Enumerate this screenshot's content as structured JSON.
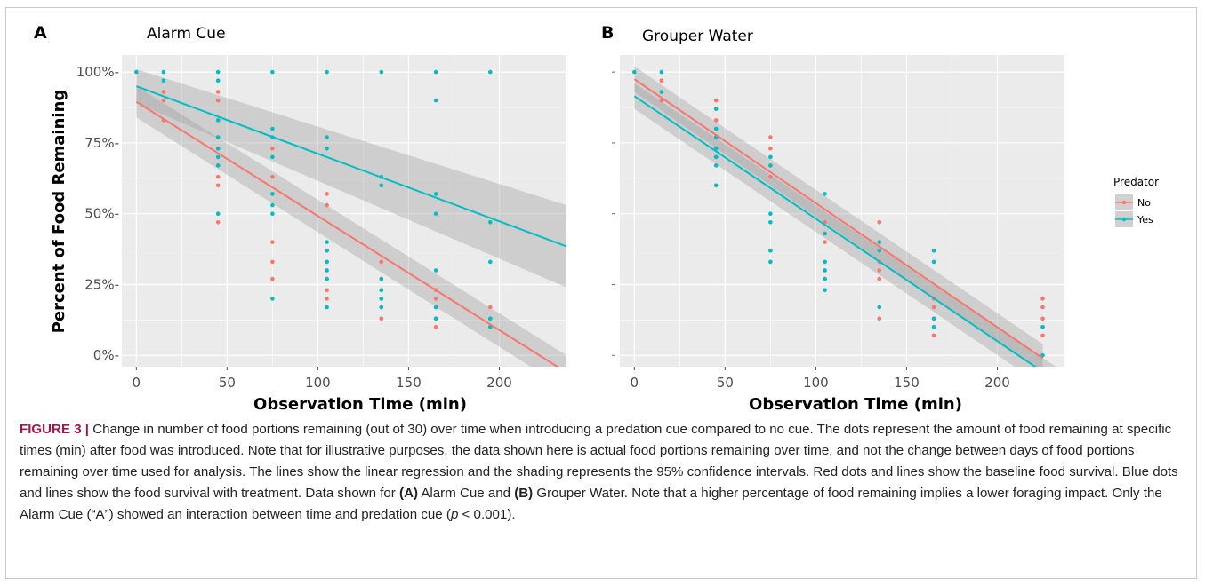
{
  "chart_data": [
    {
      "panel": "A",
      "title": "Alarm Cue",
      "type": "scatter",
      "xlabel": "Observation Time (min)",
      "ylabel": "Percent of Food Remaining",
      "xlim": [
        -8,
        237
      ],
      "ylim": [
        -4,
        106
      ],
      "xticks": [
        0,
        50,
        100,
        150,
        200
      ],
      "xtick_labels": [
        "0",
        "50",
        "100",
        "150",
        "200"
      ],
      "yticks": [
        0,
        25,
        50,
        75,
        100
      ],
      "ytick_labels": [
        "0%-",
        "25%-",
        "50%-",
        "75%-",
        "100%-"
      ],
      "series": [
        {
          "name": "No",
          "color": "#F8766D",
          "points": [
            [
              15,
              93
            ],
            [
              15,
              90
            ],
            [
              15,
              83
            ],
            [
              45,
              93
            ],
            [
              45,
              90
            ],
            [
              45,
              83
            ],
            [
              45,
              77
            ],
            [
              45,
              73
            ],
            [
              45,
              67
            ],
            [
              45,
              63
            ],
            [
              45,
              60
            ],
            [
              45,
              50
            ],
            [
              45,
              47
            ],
            [
              75,
              73
            ],
            [
              75,
              63
            ],
            [
              75,
              57
            ],
            [
              75,
              40
            ],
            [
              75,
              33
            ],
            [
              75,
              27
            ],
            [
              105,
              57
            ],
            [
              105,
              53
            ],
            [
              105,
              37
            ],
            [
              105,
              33
            ],
            [
              105,
              30
            ],
            [
              105,
              27
            ],
            [
              105,
              23
            ],
            [
              105,
              20
            ],
            [
              135,
              33
            ],
            [
              135,
              27
            ],
            [
              135,
              23
            ],
            [
              135,
              20
            ],
            [
              135,
              17
            ],
            [
              135,
              13
            ],
            [
              165,
              23
            ],
            [
              165,
              20
            ],
            [
              165,
              17
            ],
            [
              165,
              13
            ],
            [
              165,
              10
            ],
            [
              195,
              17
            ],
            [
              195,
              13
            ],
            [
              195,
              10
            ]
          ],
          "fit": {
            "x0": 0,
            "y0": 89.5,
            "x1": 237,
            "y1": -6
          },
          "ci": {
            "upper": [
              [
                0,
                95
              ],
              [
                237,
                0
              ]
            ],
            "lower": [
              [
                0,
                84
              ],
              [
                237,
                -12
              ]
            ]
          }
        },
        {
          "name": "Yes",
          "color": "#00BFC4",
          "points": [
            [
              0,
              100
            ],
            [
              15,
              100
            ],
            [
              15,
              97
            ],
            [
              45,
              100
            ],
            [
              45,
              97
            ],
            [
              45,
              83
            ],
            [
              45,
              77
            ],
            [
              45,
              73
            ],
            [
              45,
              70
            ],
            [
              45,
              67
            ],
            [
              45,
              50
            ],
            [
              75,
              100
            ],
            [
              75,
              80
            ],
            [
              75,
              77
            ],
            [
              75,
              70
            ],
            [
              75,
              57
            ],
            [
              75,
              53
            ],
            [
              75,
              50
            ],
            [
              75,
              20
            ],
            [
              105,
              100
            ],
            [
              105,
              77
            ],
            [
              105,
              73
            ],
            [
              105,
              40
            ],
            [
              105,
              37
            ],
            [
              105,
              33
            ],
            [
              105,
              30
            ],
            [
              105,
              27
            ],
            [
              105,
              17
            ],
            [
              135,
              100
            ],
            [
              135,
              63
            ],
            [
              135,
              60
            ],
            [
              135,
              27
            ],
            [
              135,
              23
            ],
            [
              135,
              20
            ],
            [
              135,
              17
            ],
            [
              165,
              100
            ],
            [
              165,
              90
            ],
            [
              165,
              57
            ],
            [
              165,
              50
            ],
            [
              165,
              30
            ],
            [
              165,
              17
            ],
            [
              165,
              13
            ],
            [
              195,
              100
            ],
            [
              195,
              47
            ],
            [
              195,
              33
            ],
            [
              195,
              13
            ],
            [
              195,
              10
            ]
          ],
          "fit": {
            "x0": 0,
            "y0": 95,
            "x1": 237,
            "y1": 38.5
          },
          "ci": {
            "upper": [
              [
                0,
                101
              ],
              [
                237,
                53
              ]
            ],
            "lower": [
              [
                0,
                89
              ],
              [
                237,
                24
              ]
            ]
          }
        }
      ]
    },
    {
      "panel": "B",
      "title": "Grouper Water",
      "type": "scatter",
      "xlabel": "Observation Time (min)",
      "ylabel": "",
      "xlim": [
        -8,
        237
      ],
      "ylim": [
        -4,
        106
      ],
      "xticks": [
        0,
        50,
        100,
        150,
        200
      ],
      "xtick_labels": [
        "0",
        "50",
        "100",
        "150",
        "200"
      ],
      "series": [
        {
          "name": "No",
          "color": "#F8766D",
          "points": [
            [
              15,
              97
            ],
            [
              15,
              93
            ],
            [
              15,
              90
            ],
            [
              45,
              90
            ],
            [
              45,
              87
            ],
            [
              45,
              83
            ],
            [
              45,
              77
            ],
            [
              45,
              73
            ],
            [
              45,
              70
            ],
            [
              75,
              77
            ],
            [
              75,
              73
            ],
            [
              75,
              70
            ],
            [
              75,
              67
            ],
            [
              75,
              63
            ],
            [
              75,
              37
            ],
            [
              75,
              33
            ],
            [
              105,
              47
            ],
            [
              105,
              43
            ],
            [
              105,
              40
            ],
            [
              105,
              33
            ],
            [
              105,
              30
            ],
            [
              105,
              27
            ],
            [
              135,
              47
            ],
            [
              135,
              40
            ],
            [
              135,
              33
            ],
            [
              135,
              30
            ],
            [
              135,
              27
            ],
            [
              135,
              13
            ],
            [
              165,
              37
            ],
            [
              165,
              33
            ],
            [
              165,
              20
            ],
            [
              165,
              17
            ],
            [
              165,
              13
            ],
            [
              165,
              10
            ],
            [
              165,
              7
            ],
            [
              225,
              20
            ],
            [
              225,
              17
            ],
            [
              225,
              13
            ],
            [
              225,
              10
            ],
            [
              225,
              7
            ]
          ],
          "fit": {
            "x0": 0,
            "y0": 97.5,
            "x1": 225,
            "y1": -1
          },
          "ci": {
            "upper": [
              [
                0,
                102
              ],
              [
                225,
                4
              ]
            ],
            "lower": [
              [
                0,
                93
              ],
              [
                225,
                -6
              ]
            ]
          }
        },
        {
          "name": "Yes",
          "color": "#00BFC4",
          "points": [
            [
              0,
              100
            ],
            [
              15,
              100
            ],
            [
              15,
              93
            ],
            [
              45,
              87
            ],
            [
              45,
              80
            ],
            [
              45,
              77
            ],
            [
              45,
              73
            ],
            [
              45,
              70
            ],
            [
              45,
              67
            ],
            [
              45,
              60
            ],
            [
              75,
              70
            ],
            [
              75,
              67
            ],
            [
              75,
              50
            ],
            [
              75,
              47
            ],
            [
              75,
              37
            ],
            [
              75,
              33
            ],
            [
              105,
              57
            ],
            [
              105,
              43
            ],
            [
              105,
              33
            ],
            [
              105,
              30
            ],
            [
              105,
              27
            ],
            [
              105,
              23
            ],
            [
              135,
              40
            ],
            [
              135,
              37
            ],
            [
              135,
              17
            ],
            [
              165,
              37
            ],
            [
              165,
              33
            ],
            [
              165,
              13
            ],
            [
              165,
              10
            ],
            [
              225,
              10
            ],
            [
              225,
              0
            ]
          ],
          "fit": {
            "x0": 0,
            "y0": 91.5,
            "x1": 237,
            "y1": -11
          },
          "ci": {
            "upper": [
              [
                0,
                96
              ],
              [
                237,
                -6
              ]
            ],
            "lower": [
              [
                0,
                87
              ],
              [
                237,
                -16
              ]
            ]
          }
        }
      ]
    }
  ],
  "legend": {
    "title": "Predator",
    "placement": "right",
    "items": [
      {
        "label": "No",
        "color": "#F8766D"
      },
      {
        "label": "Yes",
        "color": "#00BFC4"
      }
    ]
  },
  "caption": {
    "label": "FIGURE 3 |",
    "p1": " Change in number of food portions remaining (out of 30) over time when introducing a predation cue compared to no cue. The dots represent the amount of food remaining at specific times (min) after food was introduced. Note that for illustrative purposes, the data shown here is actual food portions remaining over time, and not the change between days of food portions remaining over time used for analysis. The lines show the linear regression and the shading represents the 95% confidence intervals. Red dots and lines show the baseline food survival. Blue dots and lines show the food survival with treatment. Data shown for ",
    "a_label": "(A)",
    "p2": " Alarm Cue and ",
    "b_label": "(B)",
    "p3": " Grouper Water. Note that a higher percentage of food remaining implies a lower foraging impact. Only the Alarm Cue (“A”) showed an interaction between time and predation cue (",
    "p_var": "p",
    "p4": " < 0.001)."
  },
  "colors": {
    "panel_bg": "#EBEBEB",
    "grid": "#FFFFFF",
    "ci_fill": "#999999",
    "caption_label": "#A5144A"
  }
}
